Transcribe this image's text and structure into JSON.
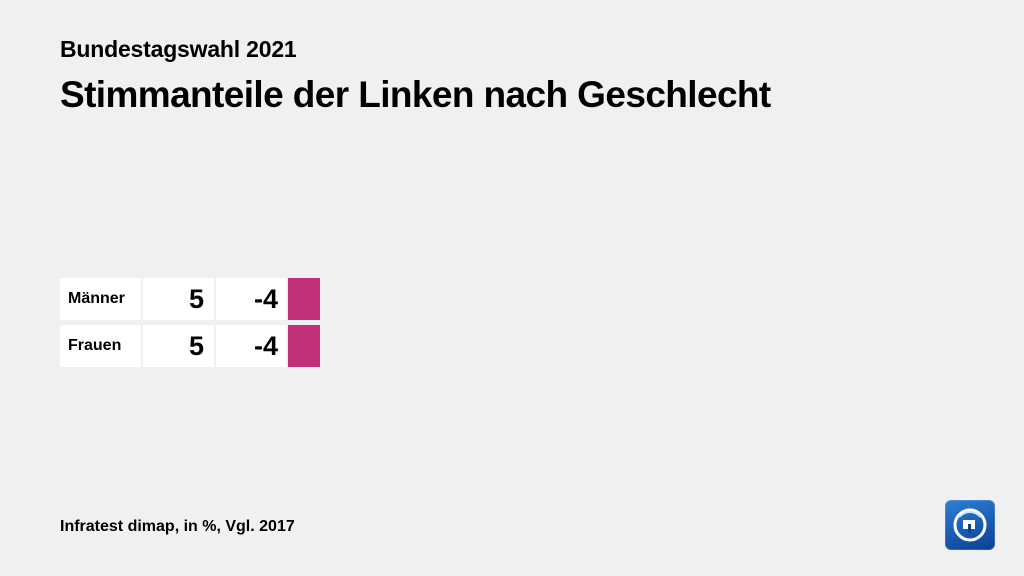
{
  "header": {
    "supertitle": "Bundestagswahl 2021",
    "title": "Stimmanteile der Linken nach Geschlecht"
  },
  "chart_data": {
    "type": "bar",
    "categories": [
      "Männer",
      "Frauen"
    ],
    "series": [
      {
        "values": [
          5,
          5
        ]
      },
      {
        "values": [
          "-4",
          "-4"
        ]
      }
    ],
    "xlim": [
      0,
      100
    ],
    "grid": false,
    "bar_color": "#c0317a"
  },
  "footer": {
    "source": "Infratest dimap, in %, Vgl. 2017"
  },
  "logo": {
    "icon": "tagesschau-logo-icon"
  }
}
